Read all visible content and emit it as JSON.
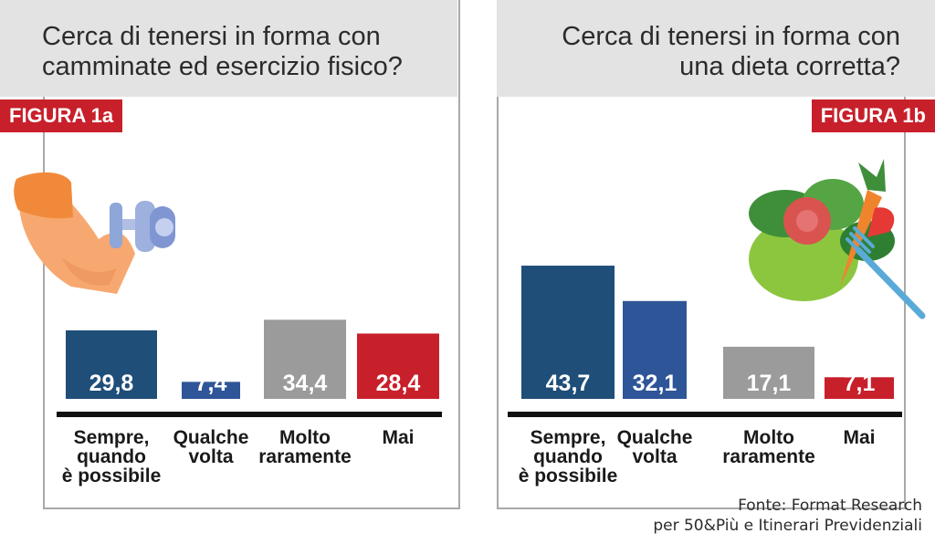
{
  "panel_left": {
    "question": [
      "Cerca di tenersi in forma con",
      "camminate ed esercizio fisico?"
    ],
    "badge": "FIGURA 1a",
    "illustration": "arm-dumbbell-icon"
  },
  "panel_right": {
    "question": [
      "Cerca di tenersi in forma con",
      "una dieta corretta?"
    ],
    "badge": "FIGURA 1b",
    "illustration": "salad-fork-icon"
  },
  "source": {
    "line1": "Fonte: Format Research",
    "line2": "per 50&Più e Itinerari Previdenziali"
  },
  "colors": {
    "navy": "#1f4e79",
    "blue": "#2e5597",
    "gray": "#9b9b9b",
    "red": "#c8202b",
    "header_bg": "#e3e3e3",
    "frame": "#a9a9a9"
  },
  "chart_data": [
    {
      "type": "bar",
      "title": "Cerca di tenersi in forma con camminate ed esercizio fisico?",
      "categories": [
        [
          "Sempre,",
          "quando",
          "è possibile"
        ],
        [
          "Qualche",
          "volta"
        ],
        [
          "Molto",
          "raramente"
        ],
        [
          "Mai"
        ]
      ],
      "values": [
        29.8,
        7.4,
        34.4,
        28.4
      ],
      "value_labels": [
        "29,8",
        "7,4",
        "34,4",
        "28,4"
      ],
      "bar_colors": [
        "#1f4e79",
        "#2e5597",
        "#9b9b9b",
        "#c8202b"
      ],
      "ylim": [
        0,
        45
      ],
      "grid": false,
      "legend": "none"
    },
    {
      "type": "bar",
      "title": "Cerca di tenersi in forma con una dieta corretta?",
      "categories": [
        [
          "Sempre,",
          "quando",
          "è possibile"
        ],
        [
          "Qualche",
          "volta"
        ],
        [
          "Molto",
          "raramente"
        ],
        [
          "Mai"
        ]
      ],
      "values": [
        43.7,
        32.1,
        17.1,
        7.1
      ],
      "value_labels": [
        "43,7",
        "32,1",
        "17,1",
        "7,1"
      ],
      "bar_colors": [
        "#1f4e79",
        "#2e5597",
        "#9b9b9b",
        "#c8202b"
      ],
      "ylim": [
        0,
        45
      ],
      "grid": false,
      "legend": "none"
    }
  ]
}
